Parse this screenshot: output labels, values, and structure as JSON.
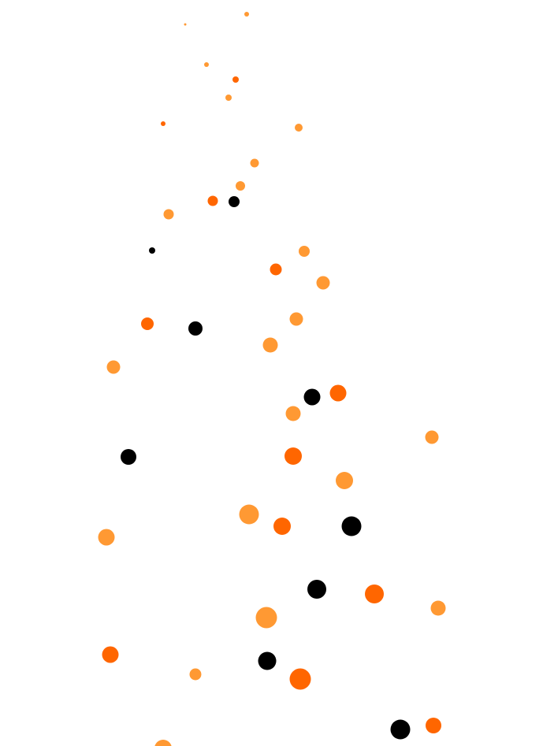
{
  "background": "#ffffff",
  "palette": {
    "light_orange": "#ff9933",
    "dark_orange": "#ff6600",
    "black": "#000000"
  }
}
